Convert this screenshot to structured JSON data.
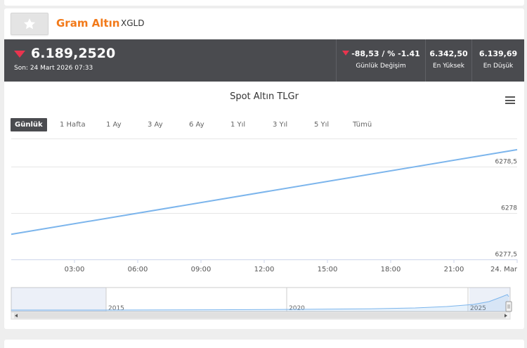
{
  "asset": {
    "name": "Gram Altın",
    "code": "XGLD"
  },
  "quote": {
    "last": "6.189,2520",
    "last_time": "Son: 24 Mart 2026 07:33",
    "change_value": "-88,53 / % -1.41",
    "change_label": "Günlük Değişim",
    "high_value": "6.342,50",
    "high_label": "En Yüksek",
    "low_value": "6.139,69",
    "low_label": "En Düşük"
  },
  "colors": {
    "accent": "#f27a1a",
    "down": "#e8344e",
    "bar": "#4a4b4f",
    "line": "#7cb5ec"
  },
  "icons": {
    "favorite": "star-icon",
    "menu": "hamburger-menu-icon",
    "trend": "down-triangle-icon"
  },
  "ranges": [
    {
      "label": "Günlük",
      "active": true
    },
    {
      "label": "1 Hafta",
      "active": false
    },
    {
      "label": "1 Ay",
      "active": false
    },
    {
      "label": "3 Ay",
      "active": false
    },
    {
      "label": "6 Ay",
      "active": false
    },
    {
      "label": "1 Yıl",
      "active": false
    },
    {
      "label": "3 Yıl",
      "active": false
    },
    {
      "label": "5 Yıl",
      "active": false
    },
    {
      "label": "Tümü",
      "active": false
    }
  ],
  "chart_data": {
    "type": "line",
    "title": "Spot Altın TLGr",
    "xlabel": "",
    "ylabel": "",
    "x_ticks": [
      "03:00",
      "06:00",
      "09:00",
      "12:00",
      "15:00",
      "18:00",
      "21:00",
      "24. Mar"
    ],
    "y_ticks": [
      "6278,5",
      "6278",
      "6277,5"
    ],
    "y_tick_values": [
      6278.5,
      6278,
      6277.5
    ],
    "ylim": [
      6277.5,
      6278.8
    ],
    "series": [
      {
        "name": "",
        "x": [
          0,
          24
        ],
        "y": [
          6277.77,
          6278.68
        ]
      }
    ],
    "grid": true,
    "navigator": {
      "labels": [
        "2015",
        "2020",
        "2025"
      ]
    }
  }
}
